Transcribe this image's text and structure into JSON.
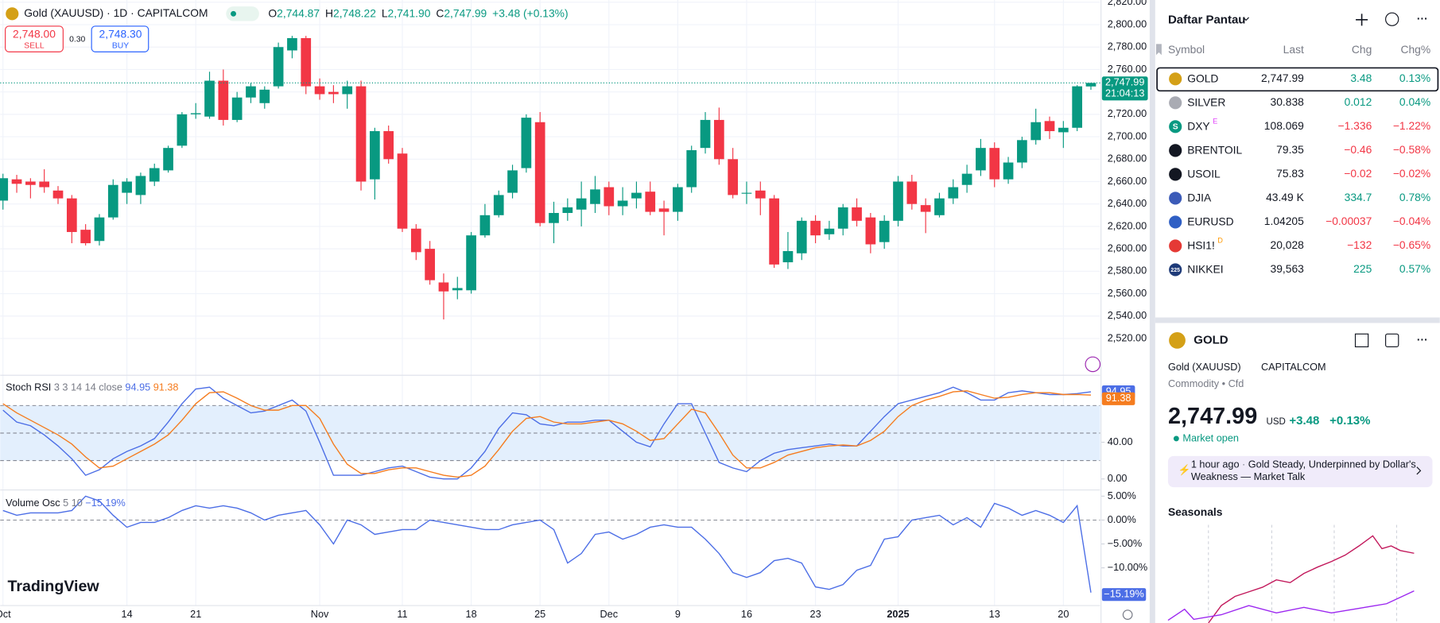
{
  "header": {
    "symbol": "Gold (XAUUSD) · 1D · CAPITALCOM",
    "o_key": "O",
    "open": "2,744.87",
    "h_key": "H",
    "high": "2,748.22",
    "l_key": "L",
    "low": "2,741.90",
    "c_key": "C",
    "close": "2,747.99",
    "change": "+3.48 (+0.13%)"
  },
  "trade": {
    "sell_price": "2,748.00",
    "sell": "SELL",
    "spread": "0.30",
    "buy_price": "2,748.30",
    "buy": "BUY"
  },
  "price_badge": {
    "price": "2,747.99",
    "countdown": "21:04:13"
  },
  "logo": "TradingView",
  "chart_data": [
    {
      "type": "candlestick",
      "up_color": "#089981",
      "down_color": "#f23645",
      "grid": true,
      "categories": [
        "Oct",
        null,
        null,
        null,
        null,
        null,
        null,
        null,
        null,
        "14",
        null,
        null,
        null,
        null,
        "21",
        null,
        null,
        null,
        null,
        null,
        null,
        null,
        null,
        "Nov",
        null,
        null,
        null,
        null,
        null,
        "11",
        null,
        null,
        null,
        null,
        "18",
        null,
        null,
        null,
        null,
        "25",
        null,
        null,
        null,
        null,
        "Dec",
        null,
        null,
        null,
        null,
        "9",
        null,
        null,
        null,
        null,
        "16",
        null,
        null,
        null,
        null,
        "23",
        null,
        null,
        null,
        null,
        null,
        "2025",
        null,
        null,
        null,
        null,
        null,
        null,
        "13",
        null,
        null,
        null,
        null,
        "20",
        null,
        null
      ],
      "open": [
        2643,
        2662,
        2660,
        2660,
        2652,
        2645,
        2617,
        2607,
        2628,
        2650,
        2648,
        2660,
        2670,
        2692,
        2720,
        2718,
        2750,
        2715,
        2735,
        2730,
        2745,
        2777,
        2788,
        2745,
        2740,
        2738,
        2745,
        2662,
        2705,
        2685,
        2618,
        2600,
        2570,
        2563,
        2563,
        2612,
        2630,
        2650,
        2672,
        2713,
        2623,
        2632,
        2635,
        2640,
        2655,
        2638,
        2645,
        2651,
        2636,
        2633,
        2655,
        2690,
        2715,
        2680,
        2650,
        2652,
        2645,
        2588,
        2596,
        2625,
        2613,
        2618,
        2637,
        2628,
        2606,
        2625,
        2660,
        2639,
        2630,
        2645,
        2657,
        2670,
        2690,
        2662,
        2677,
        2697,
        2714,
        2704,
        2708,
        2744.87
      ],
      "high": [
        2667,
        2666,
        2663,
        2671,
        2656,
        2648,
        2622,
        2631,
        2662,
        2663,
        2668,
        2676,
        2692,
        2722,
        2730,
        2758,
        2760,
        2740,
        2748,
        2745,
        2784,
        2790,
        2790,
        2752,
        2746,
        2750,
        2750,
        2708,
        2710,
        2690,
        2622,
        2607,
        2578,
        2575,
        2615,
        2640,
        2652,
        2675,
        2720,
        2722,
        2642,
        2645,
        2660,
        2665,
        2660,
        2655,
        2660,
        2660,
        2643,
        2658,
        2692,
        2722,
        2726,
        2690,
        2660,
        2660,
        2648,
        2615,
        2628,
        2630,
        2625,
        2640,
        2645,
        2632,
        2630,
        2665,
        2666,
        2645,
        2650,
        2662,
        2675,
        2698,
        2695,
        2682,
        2700,
        2725,
        2718,
        2714,
        2746,
        2748.22
      ],
      "low": [
        2635,
        2650,
        2645,
        2650,
        2640,
        2605,
        2603,
        2603,
        2626,
        2640,
        2640,
        2656,
        2668,
        2690,
        2716,
        2716,
        2710,
        2713,
        2730,
        2725,
        2743,
        2770,
        2738,
        2733,
        2730,
        2725,
        2652,
        2644,
        2676,
        2615,
        2590,
        2568,
        2537,
        2555,
        2560,
        2610,
        2628,
        2645,
        2668,
        2620,
        2605,
        2625,
        2620,
        2632,
        2630,
        2630,
        2636,
        2630,
        2612,
        2625,
        2650,
        2685,
        2675,
        2645,
        2640,
        2630,
        2583,
        2582,
        2590,
        2605,
        2608,
        2612,
        2620,
        2596,
        2600,
        2620,
        2635,
        2614,
        2628,
        2640,
        2650,
        2665,
        2655,
        2658,
        2672,
        2693,
        2698,
        2690,
        2705,
        2741.9
      ],
      "close": [
        2663,
        2658,
        2657,
        2655,
        2645,
        2615,
        2605,
        2628,
        2657,
        2660,
        2665,
        2672,
        2690,
        2720,
        2721,
        2750,
        2715,
        2735,
        2745,
        2742,
        2780,
        2788,
        2745,
        2738,
        2738,
        2745,
        2660,
        2705,
        2680,
        2618,
        2597,
        2572,
        2562,
        2565,
        2612,
        2630,
        2648,
        2670,
        2717,
        2623,
        2632,
        2637,
        2645,
        2653,
        2638,
        2643,
        2650,
        2633,
        2633,
        2655,
        2688,
        2715,
        2680,
        2648,
        2650,
        2645,
        2586,
        2598,
        2625,
        2612,
        2618,
        2637,
        2625,
        2604,
        2625,
        2660,
        2640,
        2633,
        2645,
        2655,
        2667,
        2690,
        2662,
        2677,
        2697,
        2713,
        2705,
        2708,
        2745,
        2747.99
      ],
      "ylim": [
        2488,
        2822
      ],
      "yticks": [
        {
          "value": 2520,
          "label": "2,520.00"
        },
        {
          "value": 2540,
          "label": "2,540.00"
        },
        {
          "value": 2560,
          "label": "2,560.00"
        },
        {
          "value": 2580,
          "label": "2,580.00"
        },
        {
          "value": 2600,
          "label": "2,600.00"
        },
        {
          "value": 2620,
          "label": "2,620.00"
        },
        {
          "value": 2640,
          "label": "2,640.00"
        },
        {
          "value": 2660,
          "label": "2,660.00"
        },
        {
          "value": 2680,
          "label": "2,680.00"
        },
        {
          "value": 2700,
          "label": "2,700.00"
        },
        {
          "value": 2720,
          "label": "2,720.00"
        },
        {
          "value": 2740,
          "label": "2,740.00"
        },
        {
          "value": 2760,
          "label": "2,760.00"
        },
        {
          "value": 2780,
          "label": "2,780.00"
        },
        {
          "value": 2800,
          "label": "2,800.00"
        },
        {
          "value": 2820,
          "label": "2,820.00"
        }
      ]
    },
    {
      "type": "line",
      "title": "Stoch RSI",
      "params": "3 3 14 14 close",
      "band_color": "#e3effd",
      "series": [
        {
          "color": "#4c6ee6",
          "values": [
            75,
            62,
            58,
            48,
            36,
            22,
            4,
            10,
            22,
            30,
            36,
            44,
            62,
            82,
            98,
            100,
            88,
            80,
            72,
            74,
            80,
            86,
            74,
            40,
            4,
            4,
            4,
            8,
            12,
            14,
            8,
            2,
            0,
            0,
            12,
            30,
            55,
            72,
            70,
            60,
            58,
            62,
            62,
            64,
            64,
            52,
            40,
            35,
            60,
            82,
            82,
            50,
            18,
            12,
            8,
            20,
            28,
            32,
            34,
            36,
            38,
            36,
            36,
            52,
            68,
            82,
            86,
            90,
            94,
            100,
            94,
            86,
            86,
            94,
            96,
            94,
            92,
            92,
            93,
            94.95
          ]
        },
        {
          "color": "#f57c1f",
          "values": [
            82,
            72,
            64,
            56,
            48,
            38,
            24,
            12,
            14,
            22,
            30,
            38,
            48,
            64,
            82,
            94,
            95,
            88,
            80,
            75,
            75,
            80,
            80,
            66,
            38,
            16,
            6,
            6,
            10,
            12,
            12,
            8,
            4,
            2,
            4,
            14,
            32,
            52,
            66,
            68,
            62,
            60,
            60,
            62,
            64,
            60,
            52,
            42,
            44,
            60,
            76,
            72,
            50,
            26,
            12,
            12,
            18,
            26,
            30,
            34,
            36,
            37,
            36,
            42,
            52,
            68,
            80,
            86,
            90,
            95,
            96,
            92,
            88,
            89,
            92,
            94,
            94,
            92,
            92,
            91.38
          ]
        }
      ],
      "levels": [
        20,
        50,
        80
      ],
      "ylim": [
        -11,
        112
      ],
      "yticks": [
        {
          "value": 0,
          "label": "0.00"
        },
        {
          "value": 40,
          "label": "40.00"
        }
      ]
    },
    {
      "type": "line",
      "title": "Volume Osc",
      "params": "5 10",
      "last_label": "−15.19%",
      "series": [
        {
          "color": "#4c6ee6",
          "values": [
            2,
            1,
            1.5,
            1.5,
            1.5,
            2,
            5,
            4,
            1,
            -1.5,
            -0.5,
            -0.5,
            0.5,
            2,
            3,
            2.5,
            3,
            2.5,
            1.5,
            0,
            1,
            1.5,
            2,
            -1,
            -5,
            0,
            -1,
            -3,
            -2.5,
            -2,
            -2,
            0,
            -0.5,
            -1,
            -1.5,
            -2,
            -2,
            -1,
            -0.5,
            0,
            -2,
            -9,
            -7,
            -3,
            -2.5,
            -4,
            -3,
            -1.5,
            -1,
            -1.5,
            -1.5,
            -4,
            -7,
            -11,
            -12,
            -11,
            -8.5,
            -8,
            -9,
            -14,
            -14.5,
            -13.5,
            -10.5,
            -9.5,
            -4,
            -3.5,
            0,
            0.5,
            1,
            -1,
            0.5,
            -1.5,
            3.5,
            2.5,
            1,
            2,
            1,
            -0.5,
            3,
            -15.19
          ]
        }
      ],
      "levels": [
        0
      ],
      "ylim": [
        -17.9,
        6.3
      ],
      "yticks": [
        {
          "value": 5,
          "label": "5.00%"
        },
        {
          "value": 0,
          "label": "0.00%"
        },
        {
          "value": -5,
          "label": "−5.00%"
        },
        {
          "value": -10,
          "label": "−10.00%"
        }
      ]
    }
  ],
  "watchlist": {
    "title": "Daftar Pantau",
    "columns": [
      "Symbol",
      "Last",
      "Chg",
      "Chg%"
    ],
    "rows": [
      {
        "symbol": "GOLD",
        "icon_color": "#d4a017",
        "last": "2,747.99",
        "chg": "3.48",
        "chg_pct": "0.13%",
        "dir": "up"
      },
      {
        "symbol": "SILVER",
        "icon_color": "#a9abb3",
        "last": "30.838",
        "chg": "0.012",
        "chg_pct": "0.04%",
        "dir": "up"
      },
      {
        "symbol": "DXY",
        "icon": "S",
        "sup": "E",
        "icon_color": "#089981",
        "last": "108.069",
        "chg": "−1.336",
        "chg_pct": "−1.22%",
        "dir": "down"
      },
      {
        "symbol": "BRENTOIL",
        "icon_color": "#131722",
        "last": "79.35",
        "chg": "−0.46",
        "chg_pct": "−0.58%",
        "dir": "down"
      },
      {
        "symbol": "USOIL",
        "icon_color": "#131722",
        "last": "75.83",
        "chg": "−0.02",
        "chg_pct": "−0.02%",
        "dir": "down"
      },
      {
        "symbol": "DJIA",
        "icon_color": "#3c5bb8",
        "last": "43.49 K",
        "chg": "334.7",
        "chg_pct": "0.78%",
        "dir": "up"
      },
      {
        "symbol": "EURUSD",
        "icon_color": "#2f5fc4",
        "last": "1.04205",
        "chg": "−0.00037",
        "chg_pct": "−0.04%",
        "dir": "down"
      },
      {
        "symbol": "HSI1!",
        "sup": "D",
        "icon_color": "#e53935",
        "last": "20,028",
        "chg": "−132",
        "chg_pct": "−0.65%",
        "dir": "down"
      },
      {
        "symbol": "NIKKEI",
        "icon": "225",
        "icon_color": "#1e3a78",
        "last": "39,563",
        "chg": "225",
        "chg_pct": "0.57%",
        "dir": "up"
      }
    ]
  },
  "detail": {
    "symbol": "GOLD",
    "name": "Gold (XAUUSD)",
    "exchange": "CAPITALCOM",
    "category": "Commodity",
    "sub": "Cfd",
    "price": "2,747.99",
    "currency": "USD",
    "change": "+3.48",
    "change_pct": "+0.13%",
    "status": "Market open",
    "news_time": "1 hour ago",
    "news_line1": "Gold Steady, Underpinned by Dollar's",
    "news_line2": "Weakness — Market Talk",
    "seasonals": "Seasonals"
  }
}
